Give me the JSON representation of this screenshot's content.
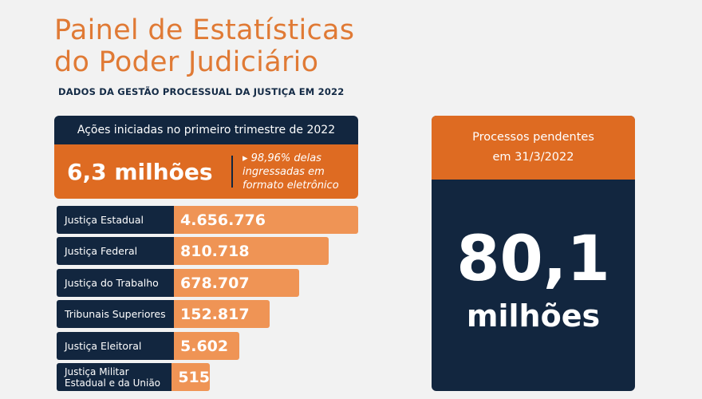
{
  "header": {
    "title_line1": "Painel de Estatísticas",
    "title_line2": "do Poder Judiciário",
    "subtitle": "DADOS DA GESTÃO PROCESSUAL DA JUSTIÇA EM 2022"
  },
  "acoes": {
    "heading": "Ações iniciadas no primeiro trimestre de 2022",
    "total": "6,3 milhões",
    "note_line1": "▸ 98,96% delas",
    "note_line2": "ingressadas em",
    "note_line3": "formato eletrônico",
    "rows": [
      {
        "label": "Justiça Estadual",
        "value": "4.656.776"
      },
      {
        "label": "Justiça Federal",
        "value": "810.718"
      },
      {
        "label": "Justiça do Trabalho",
        "value": "678.707"
      },
      {
        "label": "Tribunais Superiores",
        "value": "152.817"
      },
      {
        "label": "Justiça Eleitoral",
        "value": "5.602"
      },
      {
        "label_line1": "Justiça Militar",
        "label_line2": "Estadual e da União",
        "value": "515"
      }
    ]
  },
  "pendentes": {
    "heading_line1": "Processos pendentes",
    "heading_line2": "em 31/3/2022",
    "value": "80,1",
    "unit": "milhões"
  },
  "colors": {
    "orange": "#de6b22",
    "light_orange": "#ef9455",
    "navy": "#12263f",
    "title_orange": "#e07a35"
  }
}
